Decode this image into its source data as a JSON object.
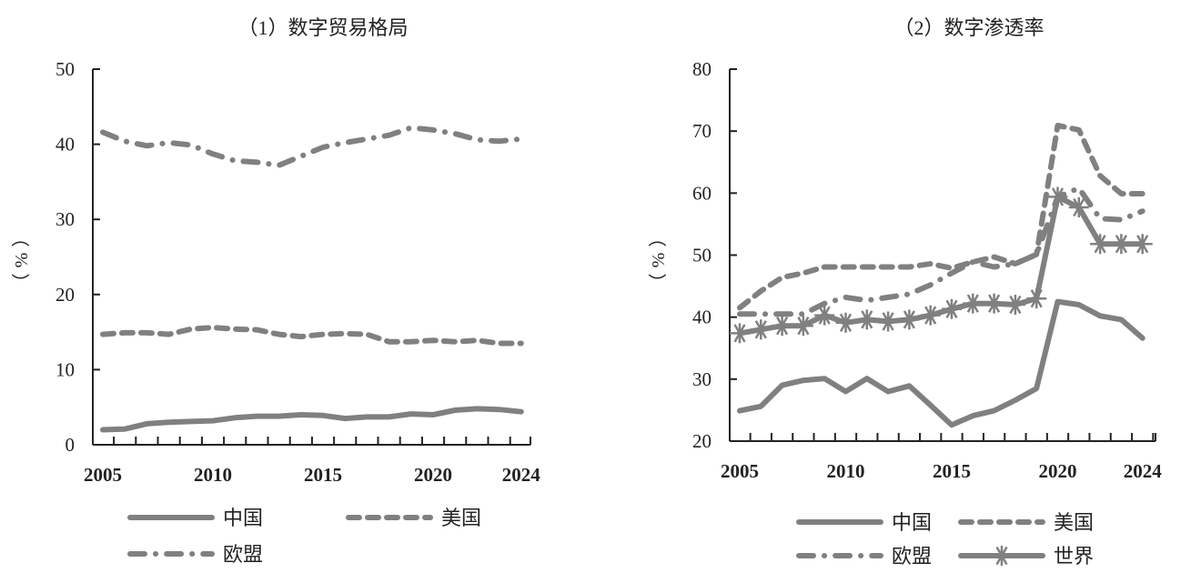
{
  "line_color": "#808083",
  "chart_data": [
    {
      "type": "line",
      "title": "（1）数字贸易格局",
      "ylabel": "（%）",
      "xlabel": "",
      "ylim": [
        0,
        50
      ],
      "yticks": [
        0,
        10,
        20,
        30,
        40,
        50
      ],
      "x": [
        2005,
        2006,
        2007,
        2008,
        2009,
        2010,
        2011,
        2012,
        2013,
        2014,
        2015,
        2016,
        2017,
        2018,
        2019,
        2020,
        2021,
        2022,
        2023,
        2024
      ],
      "xtick_labels": [
        "2005",
        "2010",
        "2015",
        "2020",
        "2024"
      ],
      "xtick_label_index": [
        0,
        5,
        10,
        15,
        19
      ],
      "grid": false,
      "legend": "bottom",
      "series": [
        {
          "name": "中国",
          "style": "solid",
          "values": [
            2.0,
            2.1,
            2.8,
            3.0,
            3.1,
            3.2,
            3.6,
            3.8,
            3.8,
            4.0,
            3.9,
            3.5,
            3.7,
            3.7,
            4.1,
            4.0,
            4.6,
            4.8,
            4.7,
            4.4
          ]
        },
        {
          "name": "美国",
          "style": "dashed",
          "values": [
            14.7,
            14.9,
            14.9,
            14.7,
            15.4,
            15.6,
            15.4,
            15.3,
            14.7,
            14.4,
            14.7,
            14.8,
            14.7,
            13.7,
            13.7,
            13.9,
            13.7,
            13.9,
            13.5,
            13.5
          ]
        },
        {
          "name": "欧盟",
          "style": "dashdot",
          "values": [
            41.6,
            40.4,
            39.8,
            40.2,
            39.9,
            38.7,
            37.8,
            37.6,
            37.2,
            38.4,
            39.6,
            40.2,
            40.7,
            41.2,
            42.2,
            41.9,
            41.4,
            40.6,
            40.4,
            40.7
          ]
        }
      ]
    },
    {
      "type": "line",
      "title": "（2）数字渗透率",
      "ylabel": "（%）",
      "xlabel": "",
      "ylim": [
        20,
        80
      ],
      "yticks": [
        20,
        30,
        40,
        50,
        60,
        70,
        80
      ],
      "x": [
        2005,
        2006,
        2007,
        2008,
        2009,
        2010,
        2011,
        2012,
        2013,
        2014,
        2015,
        2016,
        2017,
        2018,
        2019,
        2020,
        2021,
        2022,
        2023,
        2024
      ],
      "xtick_labels": [
        "2005",
        "2010",
        "2015",
        "2020",
        "2024"
      ],
      "xtick_label_index": [
        0,
        5,
        10,
        15,
        19
      ],
      "grid": false,
      "legend": "bottom",
      "series": [
        {
          "name": "中国",
          "style": "solid",
          "values": [
            24.9,
            25.6,
            29.0,
            29.8,
            30.1,
            28.0,
            30.1,
            28.0,
            28.9,
            25.8,
            22.6,
            24.1,
            24.9,
            26.6,
            28.5,
            42.5,
            42.0,
            40.2,
            39.6,
            36.6
          ]
        },
        {
          "name": "美国",
          "style": "dashed",
          "values": [
            41.5,
            44.2,
            46.4,
            47.1,
            48.1,
            48.1,
            48.1,
            48.1,
            48.1,
            48.6,
            47.9,
            48.9,
            49.7,
            48.6,
            50.1,
            70.9,
            70.2,
            62.8,
            59.9,
            59.9
          ]
        },
        {
          "name": "欧盟",
          "style": "dashdot",
          "values": [
            40.5,
            40.5,
            40.5,
            40.5,
            42.2,
            43.2,
            42.7,
            43.2,
            43.7,
            45.2,
            47.1,
            48.9,
            48.1,
            48.6,
            50.1,
            59.4,
            60.8,
            55.9,
            55.7,
            57.1
          ]
        },
        {
          "name": "世界",
          "style": "solid-star",
          "values": [
            37.4,
            38.0,
            38.6,
            38.6,
            40.3,
            39.1,
            39.6,
            39.3,
            39.6,
            40.3,
            41.3,
            42.2,
            42.2,
            42.0,
            43.0,
            59.4,
            57.7,
            51.8,
            51.8,
            51.8
          ]
        }
      ]
    }
  ]
}
